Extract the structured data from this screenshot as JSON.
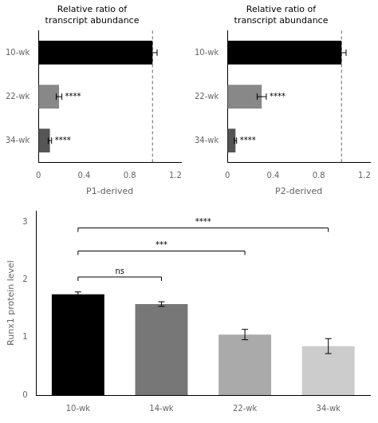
{
  "chart_data": [
    {
      "type": "bar",
      "orientation": "horizontal",
      "title": "Relative ratio of\ntranscript abundance",
      "xlabel": "P1-derived",
      "categories": [
        "10-wk",
        "22-wk",
        "34-wk"
      ],
      "values": [
        1.0,
        0.18,
        0.1
      ],
      "errors": [
        0.04,
        0.025,
        0.015
      ],
      "colors": [
        "#000000",
        "#888888",
        "#555555"
      ],
      "xlim": [
        0,
        1.25
      ],
      "xticks": [
        0,
        0.4,
        0.8,
        1.2
      ],
      "significance": [
        null,
        "****",
        "****"
      ],
      "reference_x": 1.0,
      "grid": false
    },
    {
      "type": "bar",
      "orientation": "horizontal",
      "title": "Relative ratio of\ntranscript abundance",
      "xlabel": "P2-derived",
      "categories": [
        "10-wk",
        "22-wk",
        "34-wk"
      ],
      "values": [
        1.0,
        0.3,
        0.07
      ],
      "errors": [
        0.04,
        0.04,
        0.01
      ],
      "colors": [
        "#000000",
        "#888888",
        "#555555"
      ],
      "xlim": [
        0,
        1.25
      ],
      "xticks": [
        0,
        0.4,
        0.8,
        1.2
      ],
      "significance": [
        null,
        "****",
        "****"
      ],
      "reference_x": 1.0,
      "grid": false
    },
    {
      "type": "bar",
      "ylabel": "Runx1 protein level",
      "categories": [
        "10-wk",
        "14-wk",
        "22-wk",
        "34-wk"
      ],
      "values": [
        1.75,
        1.58,
        1.05,
        0.85
      ],
      "errors": [
        0.04,
        0.04,
        0.09,
        0.13
      ],
      "colors": [
        "#000000",
        "#777777",
        "#AAAAAA",
        "#CCCCCC"
      ],
      "ylim": [
        0,
        3.2
      ],
      "yticks": [
        0,
        1,
        2,
        3
      ],
      "brackets": [
        {
          "from": "10-wk",
          "to": "14-wk",
          "y": 2.05,
          "label": "ns"
        },
        {
          "from": "10-wk",
          "to": "22-wk",
          "y": 2.5,
          "label": "***"
        },
        {
          "from": "10-wk",
          "to": "34-wk",
          "y": 2.9,
          "label": "****"
        }
      ],
      "grid": false
    }
  ]
}
